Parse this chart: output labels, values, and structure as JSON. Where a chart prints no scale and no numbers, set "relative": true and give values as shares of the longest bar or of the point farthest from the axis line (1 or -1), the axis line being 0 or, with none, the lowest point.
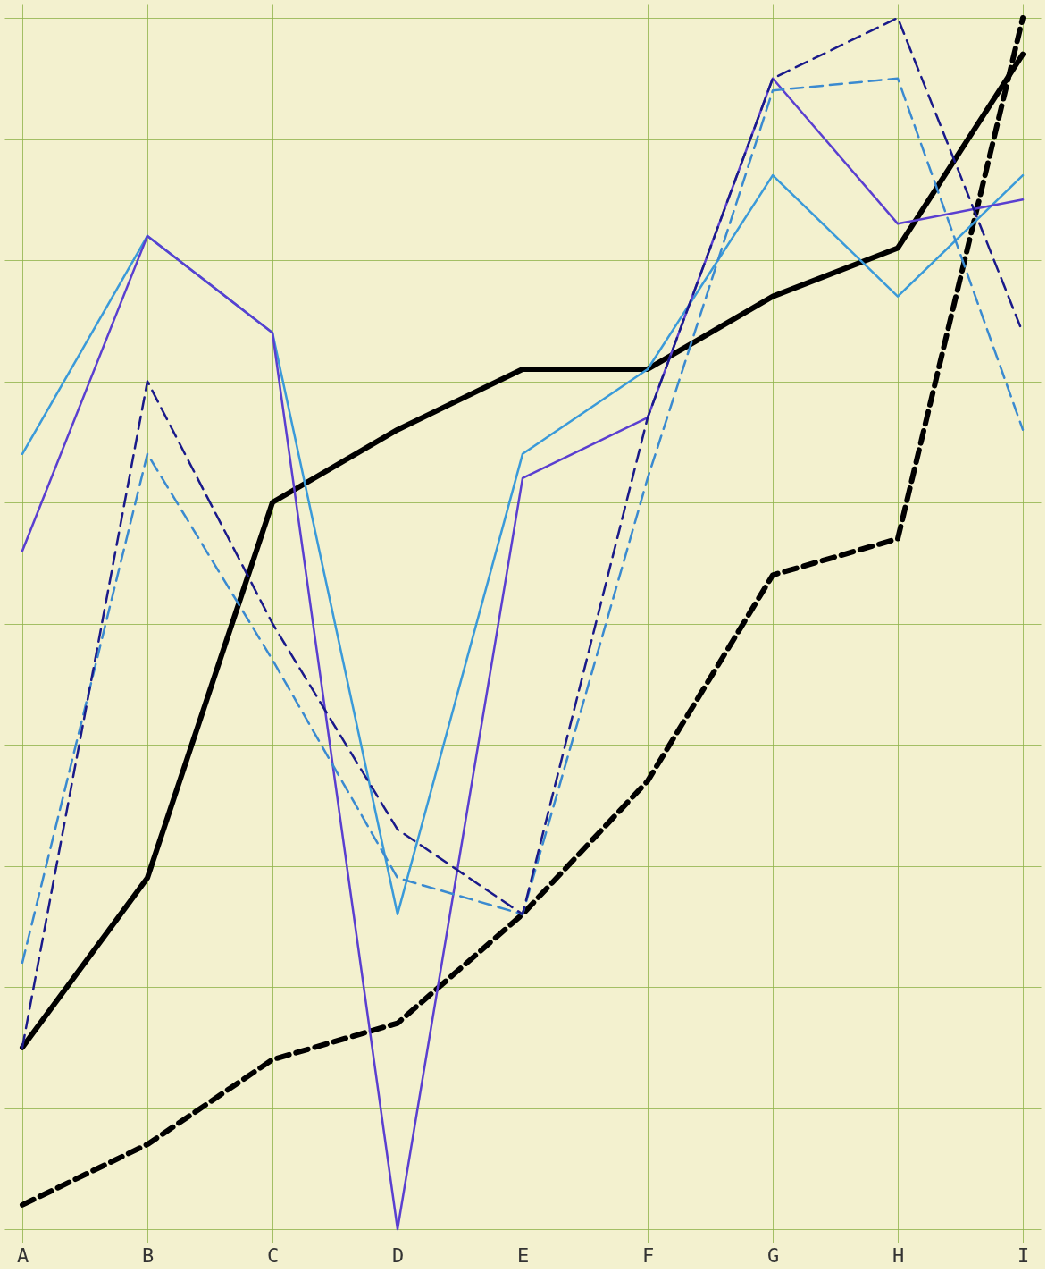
{
  "chart_data": {
    "type": "line",
    "relative": true,
    "grid": true,
    "marker": "none",
    "categories": [
      "A",
      "B",
      "C",
      "D",
      "E",
      "F",
      "G",
      "H",
      "I"
    ],
    "series": [
      {
        "color": "#000000",
        "line_style": "solid",
        "values": [
          0.15,
          0.29,
          0.6,
          0.66,
          0.71,
          0.71,
          0.77,
          0.81,
          0.97
        ]
      },
      {
        "color": "#000000",
        "line_style": "dashed",
        "values": [
          0.02,
          0.07,
          0.14,
          0.17,
          0.26,
          0.37,
          0.54,
          0.57,
          1.0
        ]
      },
      {
        "color": "#3a9ad9",
        "line_style": "solid",
        "values": [
          0.64,
          0.82,
          0.74,
          0.26,
          0.64,
          0.71,
          0.87,
          0.77,
          0.87
        ]
      },
      {
        "color": "#5a3fd0",
        "line_style": "solid",
        "values": [
          0.56,
          0.82,
          0.74,
          0,
          0.62,
          0.67,
          0.95,
          0.83,
          0.85
        ]
      },
      {
        "color": "#3a8ad0",
        "line_style": "dashed",
        "values": [
          0.22,
          0.64,
          0.47,
          0.29,
          0.26,
          0.62,
          0.94,
          0.95,
          0.66
        ]
      },
      {
        "color": "#1a1a8a",
        "line_style": "dashed",
        "values": [
          0.15,
          0.7,
          0.5,
          0.33,
          0.26,
          0.67,
          0.95,
          1.0,
          0.74
        ]
      }
    ]
  }
}
